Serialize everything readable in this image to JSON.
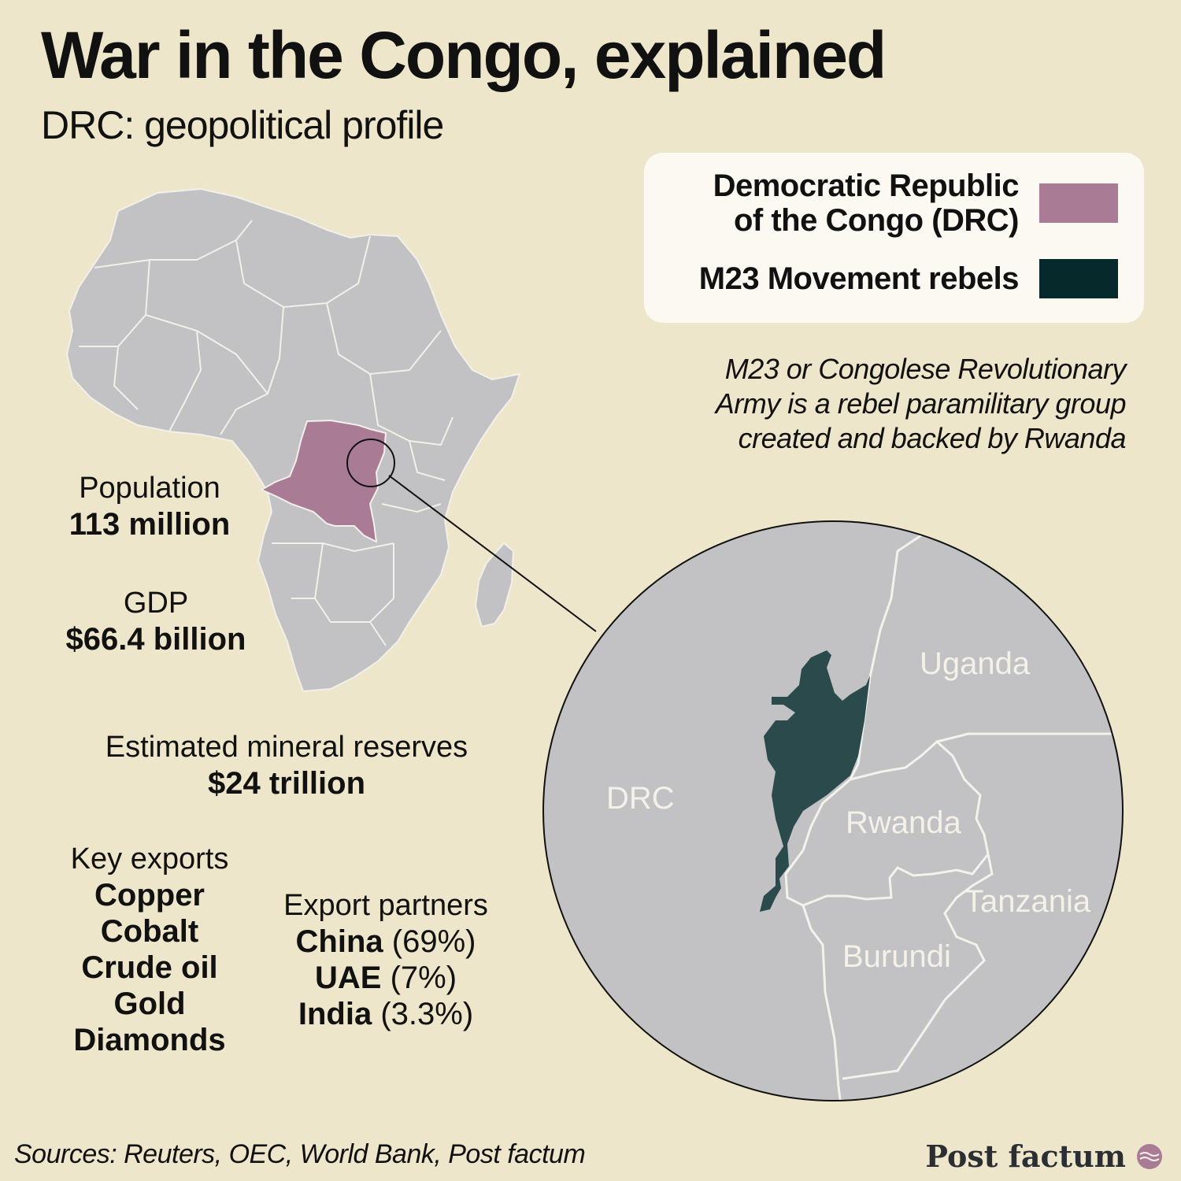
{
  "title": "War in the Congo, explained",
  "subtitle": "DRC: geopolitical profile",
  "legend": {
    "drc_line1": "Democratic Republic",
    "drc_line2": "of the Congo (DRC)",
    "drc_color": "#a97b94",
    "m23_label": "M23 Movement rebels",
    "m23_color": "#062a2b"
  },
  "note": {
    "line1": "M23 or Congolese Revolutionary",
    "line2": "Army is a rebel paramilitary group",
    "line3": "created and backed by Rwanda"
  },
  "stats": {
    "population_label": "Population",
    "population_value": "113 million",
    "gdp_label": "GDP",
    "gdp_value": "$66.4 billion",
    "minerals_label": "Estimated mineral reserves",
    "minerals_value": "$24 trillion"
  },
  "exports": {
    "heading": "Key exports",
    "items": [
      "Copper",
      "Cobalt",
      "Crude oil",
      "Gold",
      "Diamonds"
    ]
  },
  "partners": {
    "heading": "Export partners",
    "items": [
      {
        "country": "China",
        "share": "(69%)"
      },
      {
        "country": "UAE",
        "share": "(7%)"
      },
      {
        "country": "India",
        "share": "(3.3%)"
      }
    ]
  },
  "inset_labels": {
    "uganda": "Uganda",
    "drc": "DRC",
    "rwanda": "Rwanda",
    "tanzania": "Tanzania",
    "burundi": "Burundi"
  },
  "colors": {
    "background": "#ede6ca",
    "land": "#c2c1c3",
    "border": "#f2f0ea",
    "m23_fill": "#2b4a4b"
  },
  "sources": "Sources: Reuters, OEC, World Bank, Post factum",
  "brand": "Post factum"
}
